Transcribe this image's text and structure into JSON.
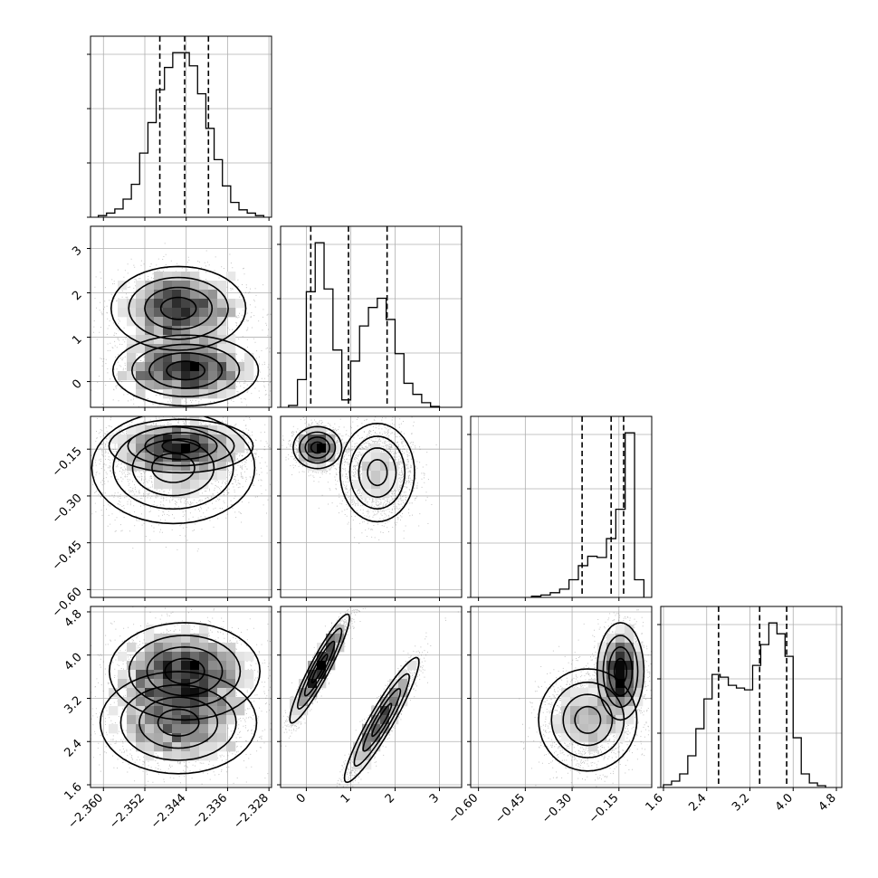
{
  "chart_data": {
    "type": "corner",
    "title": "",
    "parameters": [
      {
        "range": [
          -2.3625,
          -2.3275
        ],
        "ticks": [
          -2.36,
          -2.352,
          -2.344,
          -2.336,
          -2.328
        ],
        "tick_labels": [
          "−2.360",
          "−2.352",
          "−2.344",
          "−2.336",
          "−2.328"
        ],
        "quantiles": [
          -2.3491,
          -2.3443,
          -2.3397
        ],
        "histogram": {
          "bin_edges": [
            -2.361,
            -2.3594,
            -2.3578,
            -2.3562,
            -2.3546,
            -2.353,
            -2.3514,
            -2.3498,
            -2.3482,
            -2.3466,
            -2.345,
            -2.3434,
            -2.3418,
            -2.3402,
            -2.3386,
            -2.337,
            -2.3354,
            -2.3338,
            -2.3322,
            -2.3306,
            -2.329
          ],
          "counts": [
            2,
            5,
            10,
            22,
            40,
            78,
            115,
            155,
            182,
            200,
            200,
            184,
            150,
            108,
            70,
            38,
            18,
            9,
            5,
            2
          ]
        }
      },
      {
        "range": [
          -0.58,
          3.5
        ],
        "ticks": [
          0,
          1,
          2,
          3
        ],
        "tick_labels": [
          "0",
          "1",
          "2",
          "3"
        ],
        "quantiles": [
          0.1,
          0.95,
          1.82
        ],
        "histogram": {
          "bin_edges": [
            -0.4,
            -0.2,
            0.0,
            0.2,
            0.4,
            0.6,
            0.8,
            1.0,
            1.2,
            1.4,
            1.6,
            1.8,
            2.0,
            2.2,
            2.4,
            2.6,
            2.8,
            3.0
          ],
          "counts": [
            2,
            30,
            125,
            178,
            128,
            62,
            8,
            50,
            88,
            108,
            118,
            95,
            58,
            26,
            14,
            5,
            1
          ]
        }
      },
      {
        "range": [
          -0.625,
          -0.045
        ],
        "ticks": [
          -0.6,
          -0.45,
          -0.3,
          -0.15
        ],
        "tick_labels": [
          "−0.60",
          "−0.45",
          "−0.30",
          "−0.15"
        ],
        "quantiles": [
          -0.268,
          -0.175,
          -0.135
        ],
        "histogram": {
          "bin_edges": [
            -0.43,
            -0.4,
            -0.37,
            -0.34,
            -0.31,
            -0.28,
            -0.25,
            -0.22,
            -0.19,
            -0.16,
            -0.13,
            -0.1,
            -0.07
          ],
          "counts": [
            1,
            2,
            4,
            7,
            15,
            27,
            35,
            34,
            50,
            75,
            140,
            15
          ]
        }
      },
      {
        "range": [
          1.55,
          4.9
        ],
        "ticks": [
          1.6,
          2.4,
          3.2,
          4.0,
          4.8
        ],
        "tick_labels": [
          "1.6",
          "2.4",
          "3.2",
          "4.0",
          "4.8"
        ],
        "quantiles": [
          2.62,
          3.38,
          3.88
        ],
        "histogram": {
          "bin_edges": [
            1.6,
            1.75,
            1.9,
            2.05,
            2.2,
            2.35,
            2.5,
            2.65,
            2.8,
            2.95,
            3.1,
            3.25,
            3.4,
            3.55,
            3.7,
            3.85,
            4.0,
            4.15,
            4.3,
            4.45,
            4.6
          ],
          "counts": [
            3,
            7,
            15,
            35,
            65,
            98,
            125,
            122,
            113,
            110,
            108,
            135,
            158,
            182,
            170,
            145,
            55,
            15,
            5,
            2
          ]
        }
      }
    ],
    "correlations": [
      {
        "x_param": 0,
        "y_param": 1,
        "modes": [
          {
            "center": [
              -2.3455,
              1.65
            ],
            "sigma": [
              0.0062,
              0.45
            ],
            "weight": 0.5
          },
          {
            "center": [
              -2.3441,
              0.25
            ],
            "sigma": [
              0.0067,
              0.38
            ],
            "weight": 0.5
          }
        ]
      },
      {
        "x_param": 0,
        "y_param": 2,
        "modes": [
          {
            "center": [
              -2.345,
              -0.14
            ],
            "sigma": [
              0.0065,
              0.04
            ],
            "weight": 0.55
          },
          {
            "center": [
              -2.3465,
              -0.21
            ],
            "sigma": [
              0.0075,
              0.085
            ],
            "weight": 0.45
          }
        ]
      },
      {
        "x_param": 1,
        "y_param": 2,
        "modes": [
          {
            "center": [
              0.25,
              -0.145
            ],
            "sigma": [
              0.26,
              0.032
            ],
            "weight": 0.5
          },
          {
            "center": [
              1.6,
              -0.225
            ],
            "sigma": [
              0.4,
              0.075
            ],
            "weight": 0.5
          }
        ]
      },
      {
        "x_param": 0,
        "y_param": 3,
        "modes": [
          {
            "center": [
              -2.3443,
              3.7
            ],
            "sigma": [
              0.0068,
              0.42
            ],
            "weight": 0.55
          },
          {
            "center": [
              -2.3455,
              2.75
            ],
            "sigma": [
              0.0072,
              0.45
            ],
            "weight": 0.45
          }
        ]
      },
      {
        "x_param": 1,
        "y_param": 3,
        "modes": [
          {
            "center": [
              0.3,
              3.75
            ],
            "sigma": [
              0.32,
              0.48
            ],
            "rho": 0.93,
            "weight": 0.5
          },
          {
            "center": [
              1.7,
              2.8
            ],
            "sigma": [
              0.4,
              0.55
            ],
            "rho": 0.93,
            "weight": 0.5
          }
        ]
      },
      {
        "x_param": 2,
        "y_param": 3,
        "modes": [
          {
            "center": [
              -0.145,
              3.7
            ],
            "sigma": [
              0.035,
              0.42
            ],
            "weight": 0.55
          },
          {
            "center": [
              -0.25,
              2.8
            ],
            "sigma": [
              0.075,
              0.45
            ],
            "weight": 0.45
          }
        ]
      }
    ]
  }
}
